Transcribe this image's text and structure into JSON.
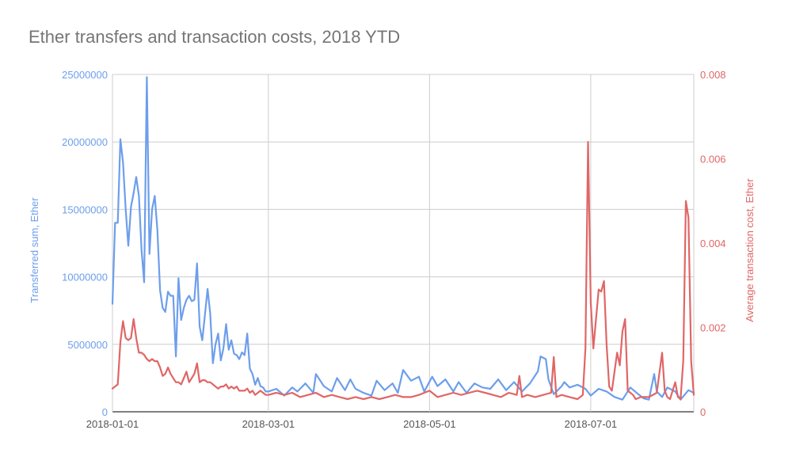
{
  "chart_data": {
    "type": "line",
    "title": "Ether transfers and transaction costs, 2018 YTD",
    "xlabel": "",
    "x_tick_labels": [
      "2018-01-01",
      "2018-03-01",
      "2018-05-01",
      "2018-07-01"
    ],
    "x_tick_days": [
      0,
      59,
      120,
      181
    ],
    "x_range_days": [
      0,
      220
    ],
    "y_left": {
      "label": "Transferred sum, Ether",
      "ylim": [
        0,
        25000000
      ],
      "ticks": [
        0,
        5000000,
        10000000,
        15000000,
        20000000,
        25000000
      ],
      "tick_labels": [
        "0",
        "5000000",
        "10000000",
        "15000000",
        "20000000",
        "25000000"
      ]
    },
    "y_right": {
      "label": "Average transaction cost, Ether",
      "ylim": [
        0,
        0.008
      ],
      "ticks": [
        0,
        0.002,
        0.004,
        0.006,
        0.008
      ],
      "tick_labels": [
        "0",
        "0.002",
        "0.004",
        "0.006",
        "0.008"
      ]
    },
    "series": [
      {
        "name": "Transferred sum, Ether",
        "axis": "left",
        "color": "#6d9eeb",
        "x": [
          0,
          1,
          2,
          3,
          4,
          5,
          6,
          7,
          8,
          9,
          10,
          11,
          12,
          13,
          14,
          15,
          16,
          17,
          18,
          19,
          20,
          21,
          22,
          23,
          24,
          25,
          26,
          27,
          28,
          29,
          30,
          31,
          32,
          33,
          34,
          35,
          36,
          37,
          38,
          39,
          40,
          41,
          42,
          43,
          44,
          45,
          46,
          47,
          48,
          49,
          50,
          51,
          52,
          53,
          54,
          55,
          56,
          57,
          58,
          59,
          62,
          65,
          68,
          70,
          73,
          76,
          77,
          80,
          83,
          85,
          88,
          90,
          92,
          95,
          98,
          100,
          103,
          106,
          108,
          110,
          113,
          116,
          118,
          121,
          123,
          126,
          129,
          131,
          134,
          137,
          140,
          143,
          146,
          149,
          152,
          155,
          158,
          161,
          162,
          164,
          165,
          167,
          170,
          171,
          173,
          176,
          179,
          181,
          184,
          187,
          190,
          193,
          196,
          199,
          201,
          203,
          205,
          206,
          208,
          210,
          213,
          215,
          218,
          220
        ],
        "values": [
          8000000,
          14000000,
          14000000,
          20200000,
          18500000,
          15000000,
          12300000,
          15200000,
          16200000,
          17400000,
          16000000,
          12000000,
          9600000,
          24800000,
          11700000,
          15000000,
          16000000,
          13500000,
          9000000,
          7700000,
          7400000,
          8900000,
          8600000,
          8600000,
          4100000,
          9900000,
          6800000,
          7700000,
          8300000,
          8600000,
          8200000,
          8300000,
          11000000,
          6300000,
          5300000,
          7200000,
          9100000,
          7300000,
          3600000,
          5000000,
          5800000,
          3800000,
          4700000,
          6500000,
          4600000,
          5300000,
          4300000,
          4200000,
          3900000,
          4400000,
          4200000,
          5800000,
          3200000,
          2800000,
          2000000,
          2500000,
          1900000,
          1800000,
          1500000,
          1500000,
          1700000,
          1200000,
          1800000,
          1500000,
          2100000,
          1400000,
          2800000,
          1900000,
          1500000,
          2500000,
          1600000,
          2400000,
          1700000,
          1400000,
          1200000,
          2300000,
          1600000,
          2100000,
          1400000,
          3100000,
          2300000,
          2600000,
          1500000,
          2600000,
          1900000,
          2400000,
          1500000,
          2200000,
          1400000,
          2100000,
          1800000,
          1700000,
          2400000,
          1600000,
          2200000,
          1500000,
          2100000,
          3000000,
          4100000,
          3900000,
          2400000,
          1300000,
          1900000,
          2200000,
          1800000,
          2000000,
          1700000,
          1200000,
          1700000,
          1500000,
          1100000,
          900000,
          1800000,
          1300000,
          1000000,
          900000,
          2800000,
          1500000,
          1100000,
          1800000,
          1500000,
          900000,
          1600000,
          1400000
        ]
      },
      {
        "name": "Average transaction cost, Ether",
        "axis": "right",
        "color": "#e06666",
        "x": [
          0,
          2,
          3,
          4,
          5,
          6,
          7,
          8,
          9,
          10,
          11,
          12,
          13,
          14,
          15,
          16,
          17,
          18,
          19,
          20,
          21,
          22,
          23,
          24,
          25,
          26,
          27,
          28,
          29,
          30,
          31,
          32,
          33,
          34,
          35,
          36,
          37,
          38,
          39,
          40,
          41,
          42,
          43,
          44,
          45,
          46,
          47,
          48,
          49,
          50,
          51,
          52,
          53,
          54,
          55,
          56,
          57,
          58,
          59,
          62,
          65,
          68,
          71,
          74,
          77,
          80,
          83,
          86,
          89,
          92,
          95,
          98,
          101,
          104,
          107,
          110,
          113,
          116,
          118,
          120,
          123,
          126,
          129,
          132,
          135,
          138,
          141,
          144,
          147,
          150,
          153,
          154,
          155,
          157,
          160,
          163,
          166,
          167,
          168,
          170,
          173,
          176,
          178,
          179,
          180,
          181,
          182,
          184,
          185,
          186,
          187,
          188,
          189,
          191,
          192,
          193,
          194,
          195,
          196,
          197,
          198,
          200,
          203,
          206,
          208,
          209,
          210,
          211,
          213,
          214,
          215,
          216,
          217,
          218,
          219,
          220
        ],
        "values": [
          0.00055,
          0.00065,
          0.00165,
          0.00215,
          0.00175,
          0.0017,
          0.00175,
          0.0022,
          0.00175,
          0.0014,
          0.0014,
          0.00135,
          0.00125,
          0.0012,
          0.00125,
          0.0012,
          0.0012,
          0.00105,
          0.00085,
          0.0009,
          0.00105,
          0.0009,
          0.0008,
          0.0007,
          0.0007,
          0.00065,
          0.0008,
          0.00095,
          0.0007,
          0.0008,
          0.0009,
          0.00115,
          0.0007,
          0.00075,
          0.00075,
          0.0007,
          0.0007,
          0.00065,
          0.0006,
          0.00055,
          0.0006,
          0.0006,
          0.00065,
          0.00055,
          0.0006,
          0.00055,
          0.0006,
          0.0005,
          0.0005,
          0.0005,
          0.00055,
          0.00045,
          0.0005,
          0.0004,
          0.00045,
          0.0005,
          0.00045,
          0.0004,
          0.0004,
          0.00045,
          0.0004,
          0.00045,
          0.00035,
          0.0004,
          0.00045,
          0.00035,
          0.0004,
          0.00035,
          0.0003,
          0.00035,
          0.0003,
          0.00035,
          0.0003,
          0.00035,
          0.0004,
          0.00035,
          0.00035,
          0.0004,
          0.00045,
          0.0005,
          0.00035,
          0.0004,
          0.00045,
          0.0004,
          0.00045,
          0.0005,
          0.00045,
          0.0004,
          0.00035,
          0.00045,
          0.0004,
          0.00085,
          0.00035,
          0.0004,
          0.00035,
          0.0004,
          0.00045,
          0.0013,
          0.00035,
          0.0004,
          0.00035,
          0.0003,
          0.0004,
          0.0015,
          0.0064,
          0.0026,
          0.0015,
          0.0029,
          0.00285,
          0.0031,
          0.0016,
          0.0006,
          0.0005,
          0.0014,
          0.0011,
          0.0019,
          0.0022,
          0.0005,
          0.00045,
          0.0004,
          0.0003,
          0.00035,
          0.00035,
          0.00045,
          0.0014,
          0.0005,
          0.00035,
          0.0003,
          0.0007,
          0.00035,
          0.0003,
          0.0012,
          0.005,
          0.0046,
          0.0012,
          0.0004
        ]
      }
    ],
    "grid": true,
    "legend": "none"
  }
}
